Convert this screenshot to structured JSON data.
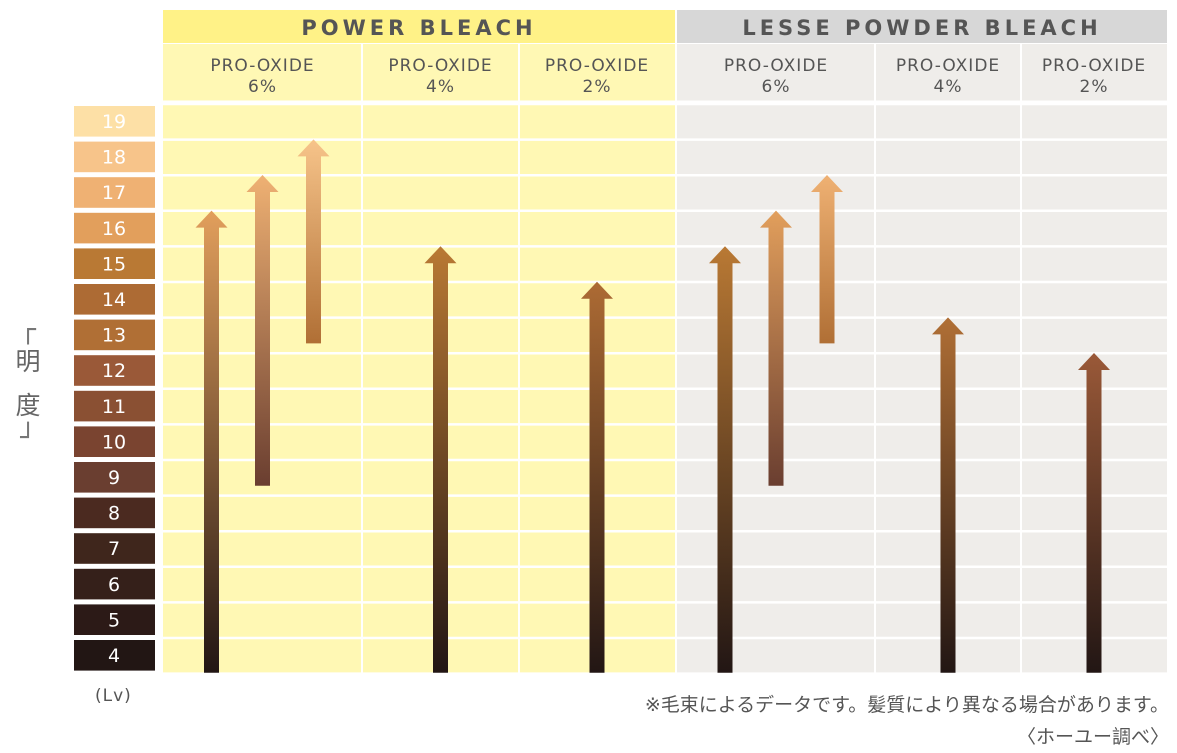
{
  "chart_data": {
    "type": "range-arrows",
    "groups": [
      {
        "title": "POWER BLEACH",
        "columns": [
          {
            "label_line1": "PRO-OXIDE",
            "label_line2": "6%",
            "arrows": [
              {
                "from": 4,
                "to": 16
              },
              {
                "from": 9,
                "to": 17
              },
              {
                "from": 13,
                "to": 18
              }
            ]
          },
          {
            "label_line1": "PRO-OXIDE",
            "label_line2": "4%",
            "arrows": [
              {
                "from": 4,
                "to": 15
              }
            ]
          },
          {
            "label_line1": "PRO-OXIDE",
            "label_line2": "2%",
            "arrows": [
              {
                "from": 4,
                "to": 14
              }
            ]
          }
        ]
      },
      {
        "title": "LESSE POWDER BLEACH",
        "columns": [
          {
            "label_line1": "PRO-OXIDE",
            "label_line2": "6%",
            "arrows": [
              {
                "from": 4,
                "to": 15
              },
              {
                "from": 9,
                "to": 16
              },
              {
                "from": 13,
                "to": 17
              }
            ]
          },
          {
            "label_line1": "PRO-OXIDE",
            "label_line2": "4%",
            "arrows": [
              {
                "from": 4,
                "to": 13
              }
            ]
          },
          {
            "label_line1": "PRO-OXIDE",
            "label_line2": "2%",
            "arrows": [
              {
                "from": 4,
                "to": 12
              }
            ]
          }
        ]
      }
    ],
    "levels": [
      19,
      18,
      17,
      16,
      15,
      14,
      13,
      12,
      11,
      10,
      9,
      8,
      7,
      6,
      5,
      4
    ],
    "level_colors": [
      "#fde0a6",
      "#f7c48a",
      "#efb173",
      "#e29f5c",
      "#b97934",
      "#ad6b34",
      "#b06f35",
      "#9a5938",
      "#8a5033",
      "#7a4430",
      "#6a3e30",
      "#4b2a20",
      "#3f261c",
      "#35201a",
      "#2c1a17",
      "#221614"
    ],
    "ylim": [
      4,
      19
    ],
    "ylabel": "明度",
    "unit_label": "(Lv)"
  },
  "colors": {
    "group1_bg": "#fff8b4",
    "group1_header": "#fff287",
    "group2_bg": "#efedea",
    "group2_header": "#d7d7d7",
    "gridline": "#ffffff",
    "header_text": "#555555"
  },
  "notes": {
    "line1": "※毛束によるデータです。髪質により異なる場合があります。",
    "line2": "〈ホーユー調べ〉"
  }
}
